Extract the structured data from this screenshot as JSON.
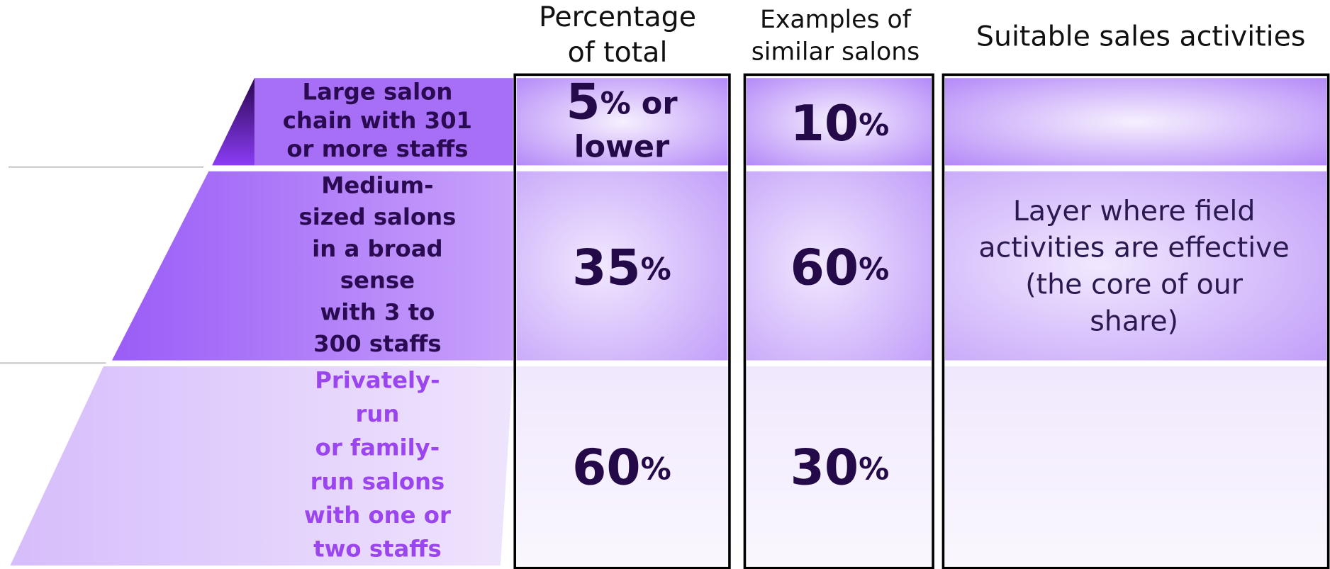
{
  "headers": {
    "percentage": [
      "Percentage",
      "of total"
    ],
    "examples": [
      "Examples of",
      "similar salons"
    ],
    "activities": [
      "Suitable sales activities"
    ]
  },
  "tiers": [
    {
      "label": [
        "Large salon",
        "chain with 301",
        "or more staffs"
      ],
      "percentage": [
        "5% or",
        "lower"
      ],
      "examples": [
        "10%"
      ],
      "activities": []
    },
    {
      "label": [
        "Medium-",
        "sized salons",
        "in a broad",
        "sense",
        " with 3 to",
        "300 staffs"
      ],
      "percentage": [
        "35%"
      ],
      "examples": [
        "60%"
      ],
      "activities": [
        "Layer where field",
        "activities are effective",
        "(the core of our",
        "share)"
      ]
    },
    {
      "label": [
        "Privately-",
        "run",
        " or family-",
        "run salons",
        "with one or",
        "two staffs"
      ],
      "percentage": [
        "60%"
      ],
      "examples": [
        "30%"
      ],
      "activities": []
    }
  ]
}
